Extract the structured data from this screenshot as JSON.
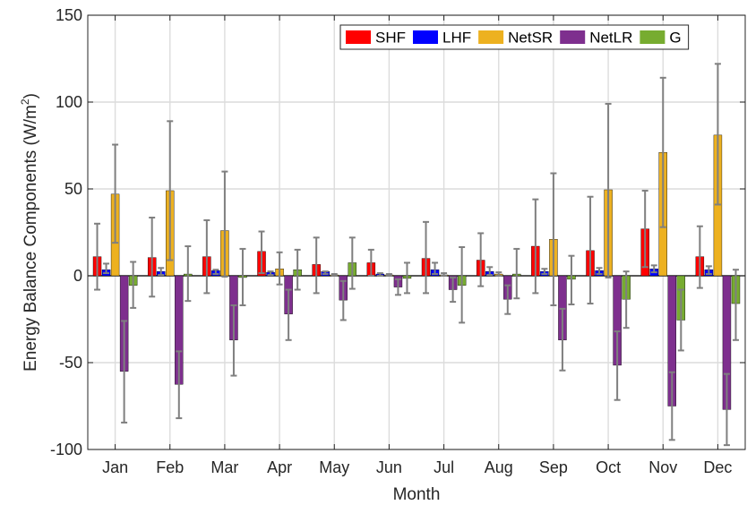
{
  "chart_data": {
    "type": "bar",
    "title": "",
    "xlabel": "Month",
    "ylabel_main": "Energy Balance Components  (W/m",
    "ylabel_sup": "2",
    "ylabel_close": ")",
    "ylim": [
      -100,
      150
    ],
    "yticks": [
      -100,
      -50,
      0,
      50,
      100,
      150
    ],
    "grid": true,
    "legend_position": "top-right",
    "categories": [
      "Jan",
      "Feb",
      "Mar",
      "Apr",
      "May",
      "Jun",
      "Jul",
      "Aug",
      "Sep",
      "Oct",
      "Nov",
      "Dec"
    ],
    "series": [
      {
        "name": "SHF",
        "color": "#ff0000",
        "values": [
          11,
          10.5,
          11,
          14,
          6.5,
          7.5,
          10,
          9,
          17,
          14.5,
          27,
          11
        ],
        "err_low": [
          -8,
          -12,
          -10,
          1.5,
          -10,
          0,
          -10,
          -6,
          -10,
          -16,
          5,
          -7
        ],
        "err_high": [
          30,
          33.5,
          32,
          25.5,
          22,
          15,
          31,
          24.5,
          44,
          45.5,
          49,
          28.5
        ]
      },
      {
        "name": "LHF",
        "color": "#0000ff",
        "values": [
          3.5,
          2.5,
          3,
          2,
          2.5,
          1,
          3.5,
          2.5,
          2.5,
          3,
          4,
          3.5
        ],
        "err_low": [
          1.5,
          0.5,
          1,
          0.5,
          1,
          0,
          1,
          0.5,
          1,
          1,
          2,
          1
        ],
        "err_high": [
          7,
          4.5,
          3.5,
          2.5,
          2.5,
          1.5,
          7.5,
          5,
          4,
          4.5,
          6,
          5.5
        ]
      },
      {
        "name": "NetSR",
        "color": "#edb120",
        "values": [
          47,
          49,
          26,
          4,
          0.5,
          0.5,
          0.5,
          1,
          21,
          49.5,
          71,
          81
        ],
        "err_low": [
          19,
          9,
          -0.5,
          -5,
          0,
          0,
          0,
          0,
          -17,
          -1,
          28,
          41
        ],
        "err_high": [
          75.5,
          89,
          60,
          13.5,
          1,
          1,
          1.5,
          2,
          59,
          99,
          114,
          122
        ]
      },
      {
        "name": "NetLR",
        "color": "#7e2f8e",
        "values": [
          -55,
          -62.5,
          -37,
          -22,
          -14,
          -6.5,
          -8,
          -13.5,
          -37,
          -51.5,
          -75,
          -77
        ],
        "err_low": [
          -84.5,
          -82,
          -57.5,
          -37,
          -25.5,
          -11,
          -15,
          -22,
          -54.5,
          -71.5,
          -94.5,
          -97.5
        ],
        "err_high": [
          -26,
          -43.5,
          -17,
          -8,
          -3,
          -2,
          -1,
          -5.5,
          -19,
          -32,
          -55.5,
          -56.5
        ]
      },
      {
        "name": "G",
        "color": "#77ac30",
        "values": [
          -5.5,
          1,
          -1,
          3.5,
          7.5,
          -1.5,
          -5.5,
          1,
          -2,
          -13.5,
          -25.5,
          -16
        ],
        "err_low": [
          -18.5,
          -14.5,
          -17,
          -8,
          -7.5,
          -10,
          -27,
          -13,
          -16.5,
          -30,
          -43,
          -37
        ],
        "err_high": [
          8,
          17,
          15.5,
          15,
          22,
          7.5,
          16.5,
          15.5,
          11.5,
          2.5,
          -8,
          3.5
        ]
      }
    ]
  }
}
